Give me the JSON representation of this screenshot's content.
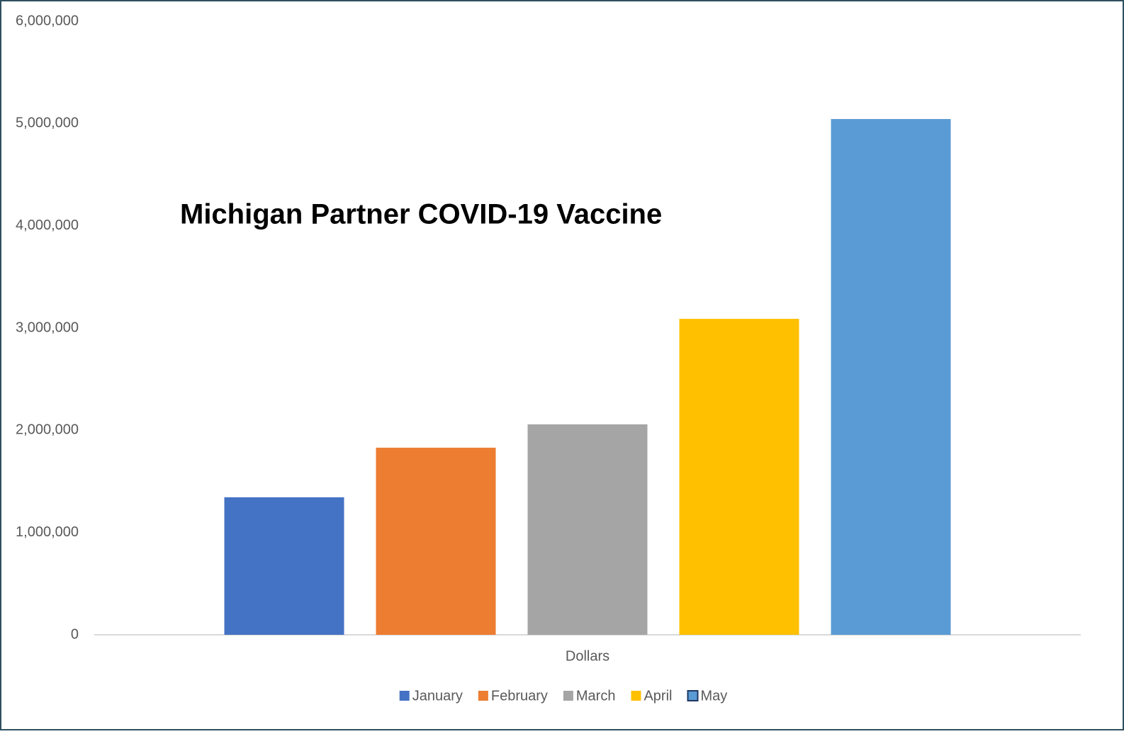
{
  "chart_data": {
    "type": "bar",
    "title": "Michigan Partner COVID-19 Vaccine",
    "categories": [
      "Dollars"
    ],
    "series": [
      {
        "name": "January",
        "color": "#4472c4",
        "values": [
          1345000
        ]
      },
      {
        "name": "February",
        "color": "#ed7d31",
        "values": [
          1830000
        ]
      },
      {
        "name": "March",
        "color": "#a5a5a5",
        "values": [
          2058000
        ]
      },
      {
        "name": "April",
        "color": "#ffc000",
        "values": [
          3090000
        ]
      },
      {
        "name": "May",
        "color": "#5b9bd5",
        "values": [
          5044000
        ]
      }
    ],
    "ylim": [
      0,
      6000000
    ],
    "yticks": [
      0,
      {
        "value": 1000000,
        "label": "1,000,000"
      },
      {
        "value": 2000000,
        "label": "2,000,000"
      },
      {
        "value": 3000000,
        "label": "3,000,000"
      },
      {
        "value": 4000000,
        "label": "4,000,000"
      },
      {
        "value": 5000000,
        "label": "5,000,000"
      },
      {
        "value": 6000000,
        "label": "6,000,000"
      }
    ],
    "legend": "bottom"
  }
}
